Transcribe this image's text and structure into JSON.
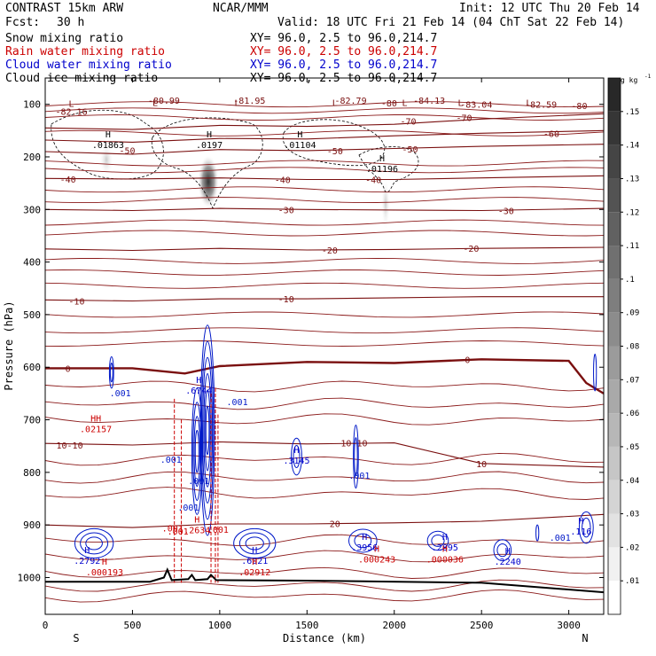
{
  "header": {
    "model": "CONTRAST 15km ARW",
    "fcst_label": "Fcst:",
    "fcst_value": "30 h",
    "org": "NCAR/MMM",
    "init": "Init: 12 UTC Thu 20 Feb 14",
    "valid": "Valid: 18 UTC Fri 21 Feb 14 (04 ChT Sat 22 Feb 14)"
  },
  "legend": [
    {
      "label": "Snow mixing ratio",
      "xy": "XY=  96.0,  2.5 to  96.0,214.7",
      "color": "#000000"
    },
    {
      "label": "Rain water mixing ratio",
      "xy": "XY=  96.0,  2.5 to  96.0,214.7",
      "color": "#cc0000"
    },
    {
      "label": "Cloud water mixing ratio",
      "xy": "XY=  96.0,  2.5 to  96.0,214.7",
      "color": "#0000cc"
    },
    {
      "label": "Cloud ice mixing ratio",
      "xy": "XY=  96.0,  2.5 to  96.0,214.7",
      "color": "#000000"
    }
  ],
  "colorbar": {
    "unit": "g kg",
    "unit_exp": "-1",
    "ticks": [
      ".15",
      ".14",
      ".13",
      ".12",
      ".11",
      ".1",
      ".09",
      ".08",
      ".07",
      ".06",
      ".05",
      ".04",
      ".03",
      ".02",
      ".01"
    ]
  },
  "chart_data": {
    "type": "contour",
    "xlabel": "Distance (km)",
    "ylabel": "Pressure (hPa)",
    "xlim": [
      0,
      3200
    ],
    "ylim": [
      1070,
      50
    ],
    "x_ticks": [
      0,
      500,
      1000,
      1500,
      2000,
      2500,
      3000
    ],
    "y_ticks": [
      100,
      200,
      300,
      400,
      500,
      600,
      700,
      800,
      900,
      1000
    ],
    "endpoints": {
      "left": "S",
      "right": "N"
    },
    "temperature_contour_labels": [
      {
        "text": "-82.16",
        "x": 150,
        "p": 113
      },
      {
        "text": "-80.99",
        "x": 680,
        "p": 92
      },
      {
        "text": "-81.95",
        "x": 1170,
        "p": 92
      },
      {
        "text": "-82.79",
        "x": 1750,
        "p": 92
      },
      {
        "text": "-80",
        "x": 1970,
        "p": 97
      },
      {
        "text": "-84.13",
        "x": 2200,
        "p": 92
      },
      {
        "text": "-83.04",
        "x": 2470,
        "p": 100
      },
      {
        "text": "-82.59",
        "x": 2840,
        "p": 100
      },
      {
        "text": "-80",
        "x": 3060,
        "p": 102
      },
      {
        "text": "-70",
        "x": 2080,
        "p": 132
      },
      {
        "text": "-70",
        "x": 2400,
        "p": 125
      },
      {
        "text": "-60",
        "x": 2900,
        "p": 155
      },
      {
        "text": "-50",
        "x": 470,
        "p": 187
      },
      {
        "text": "-50",
        "x": 1660,
        "p": 188
      },
      {
        "text": "-50",
        "x": 2090,
        "p": 185
      },
      {
        "text": "-40",
        "x": 130,
        "p": 242
      },
      {
        "text": "-40",
        "x": 1360,
        "p": 243
      },
      {
        "text": "-40",
        "x": 1880,
        "p": 243
      },
      {
        "text": "-30",
        "x": 1380,
        "p": 300
      },
      {
        "text": "-30",
        "x": 2640,
        "p": 302
      },
      {
        "text": "-20",
        "x": 1630,
        "p": 377
      },
      {
        "text": "-20",
        "x": 2440,
        "p": 374
      },
      {
        "text": "-10",
        "x": 180,
        "p": 474
      },
      {
        "text": "-10",
        "x": 1380,
        "p": 470
      },
      {
        "text": "0",
        "x": 130,
        "p": 602
      },
      {
        "text": "0",
        "x": 2420,
        "p": 585
      },
      {
        "text": "10-10",
        "x": 140,
        "p": 748
      },
      {
        "text": "10-10",
        "x": 1770,
        "p": 744
      },
      {
        "text": "10",
        "x": 2500,
        "p": 783
      },
      {
        "text": "20",
        "x": 1660,
        "p": 897
      }
    ],
    "isotherms": [
      {
        "value": -70,
        "points": [
          [
            0,
            145
          ],
          [
            500,
            148
          ],
          [
            1000,
            140
          ],
          [
            1500,
            142
          ],
          [
            2000,
            138
          ],
          [
            2500,
            128
          ],
          [
            3200,
            118
          ]
        ]
      },
      {
        "value": -60,
        "points": [
          [
            0,
            168
          ],
          [
            500,
            172
          ],
          [
            1000,
            165
          ],
          [
            1500,
            166
          ],
          [
            2000,
            160
          ],
          [
            2500,
            155
          ],
          [
            3200,
            150
          ]
        ]
      },
      {
        "value": -50,
        "points": [
          [
            0,
            190
          ],
          [
            500,
            195
          ],
          [
            1000,
            186
          ],
          [
            1500,
            188
          ],
          [
            2000,
            184
          ],
          [
            2500,
            180
          ],
          [
            3200,
            176
          ]
        ]
      },
      {
        "value": -40,
        "points": [
          [
            0,
            241
          ],
          [
            500,
            242
          ],
          [
            1000,
            240
          ],
          [
            1500,
            243
          ],
          [
            2000,
            243
          ],
          [
            2500,
            240
          ],
          [
            3200,
            236
          ]
        ]
      },
      {
        "value": -30,
        "points": [
          [
            0,
            300
          ],
          [
            500,
            302
          ],
          [
            1000,
            298
          ],
          [
            1500,
            300
          ],
          [
            2000,
            301
          ],
          [
            2500,
            302
          ],
          [
            3200,
            298
          ]
        ]
      },
      {
        "value": -20,
        "points": [
          [
            0,
            375
          ],
          [
            500,
            378
          ],
          [
            1000,
            374
          ],
          [
            1500,
            377
          ],
          [
            2000,
            376
          ],
          [
            2500,
            374
          ],
          [
            3200,
            372
          ]
        ]
      },
      {
        "value": -10,
        "points": [
          [
            0,
            472
          ],
          [
            500,
            474
          ],
          [
            1000,
            470
          ],
          [
            1500,
            470
          ],
          [
            2000,
            468
          ],
          [
            2500,
            466
          ],
          [
            3200,
            466
          ]
        ]
      },
      {
        "value": 0,
        "points": [
          [
            0,
            602
          ],
          [
            500,
            602
          ],
          [
            800,
            612
          ],
          [
            1000,
            598
          ],
          [
            1500,
            590
          ],
          [
            2000,
            592
          ],
          [
            2500,
            585
          ],
          [
            3000,
            588
          ],
          [
            3100,
            630
          ],
          [
            3200,
            650
          ]
        ]
      },
      {
        "value": 10,
        "points": [
          [
            0,
            745
          ],
          [
            500,
            748
          ],
          [
            1000,
            742
          ],
          [
            1500,
            746
          ],
          [
            2000,
            744
          ],
          [
            2500,
            783
          ],
          [
            3200,
            790
          ]
        ]
      },
      {
        "value": 20,
        "points": [
          [
            0,
            900
          ],
          [
            500,
            905
          ],
          [
            1000,
            898
          ],
          [
            1500,
            898
          ],
          [
            2000,
            896
          ],
          [
            2500,
            893
          ],
          [
            3200,
            880
          ]
        ]
      }
    ],
    "max_markers": [
      {
        "text": "H",
        "value": ".01863",
        "x": 360,
        "p": 170,
        "color": "#000000"
      },
      {
        "text": "H",
        "value": ".0197",
        "x": 940,
        "p": 170,
        "color": "#000000"
      },
      {
        "text": "H",
        "value": ".01104",
        "x": 1460,
        "p": 170,
        "color": "#000000"
      },
      {
        "text": "H",
        "value": ".01196",
        "x": 1930,
        "p": 215,
        "color": "#000000"
      },
      {
        "text": "H",
        "value": ".6744",
        "x": 880,
        "p": 637,
        "color": "#0000cc"
      },
      {
        "text": "H",
        "value": ".3145",
        "x": 1440,
        "p": 770,
        "color": "#0000cc"
      },
      {
        "text": "H",
        "value": ".3956",
        "x": 1830,
        "p": 935,
        "color": "#0000cc"
      },
      {
        "text": "H",
        "value": ".2792",
        "x": 240,
        "p": 960,
        "color": "#0000cc"
      },
      {
        "text": "H",
        "value": ".6021",
        "x": 1200,
        "p": 960,
        "color": "#0000cc"
      },
      {
        "text": "H",
        "value": ".2895",
        "x": 2290,
        "p": 935,
        "color": "#0000cc"
      },
      {
        "text": "H",
        "value": ".2240",
        "x": 2650,
        "p": 962,
        "color": "#0000cc"
      },
      {
        "text": "H",
        "value": ".116",
        "x": 3070,
        "p": 905,
        "color": "#0000cc"
      },
      {
        "text": "HH",
        "value": ".02157",
        "x": 290,
        "p": 710,
        "color": "#cc0000"
      },
      {
        "text": "H",
        "value": ".000193",
        "x": 340,
        "p": 982,
        "color": "#cc0000"
      },
      {
        "text": "H",
        "value": ".02912",
        "x": 1200,
        "p": 982,
        "color": "#cc0000"
      },
      {
        "text": "H",
        "value": ".000243",
        "x": 1900,
        "p": 958,
        "color": "#cc0000"
      },
      {
        "text": "H",
        "value": ".000036",
        "x": 2290,
        "p": 958,
        "color": "#cc0000"
      },
      {
        "text": "H",
        "value": ".2634",
        "x": 870,
        "p": 902,
        "color": "#cc0000"
      }
    ],
    "cloud_water_labels": [
      ".001",
      ".001",
      ".001",
      ".001",
      ".001",
      ".001",
      ".001"
    ],
    "rain_labels": [
      ".001",
      ".001",
      ".001"
    ],
    "terrain_peak_km": [
      700,
      830,
      950
    ]
  }
}
